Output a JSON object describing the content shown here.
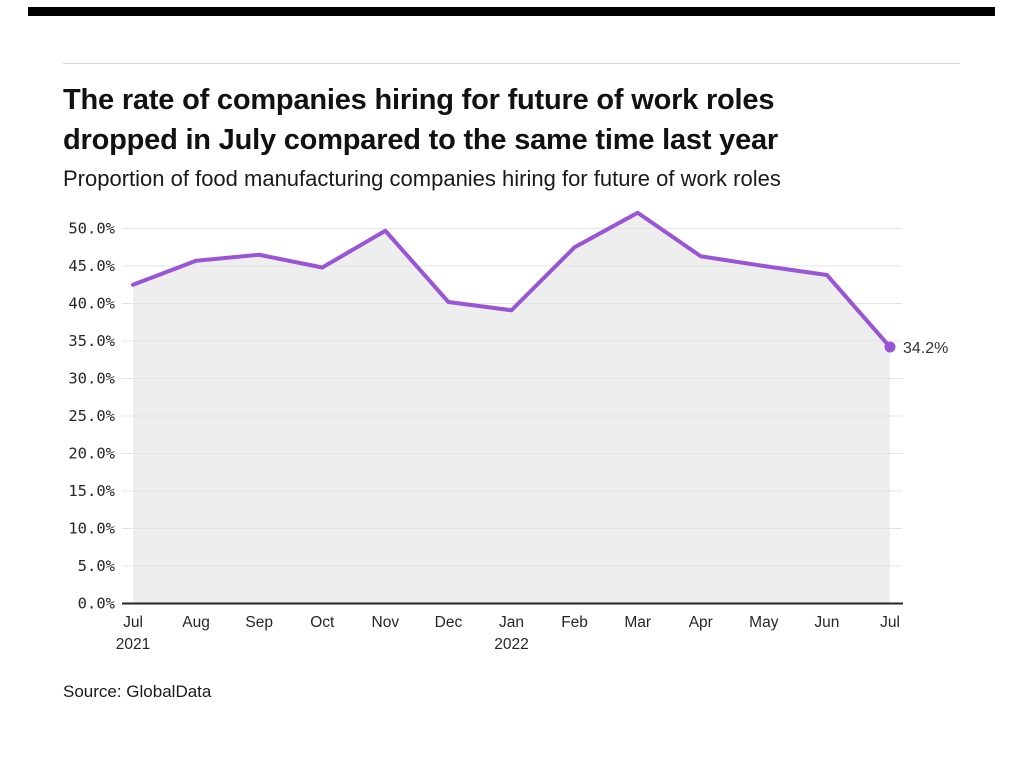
{
  "header": {
    "title_line1": "The rate of companies hiring for future of work roles",
    "title_line2": "dropped in July compared to the same time last year",
    "subtitle": "Proportion of food manufacturing companies hiring for future of work roles"
  },
  "footer": {
    "source": "Source: GlobalData"
  },
  "colors": {
    "accent_bar": "#000000",
    "header_rule": "#d9d9d9",
    "line": "#9a54d6",
    "area_fill": "#eeeeee",
    "gridline": "#e4e4e4",
    "axis": "#262626",
    "tick_text": "#262626",
    "end_label_text": "#333333"
  },
  "chart_data": {
    "type": "line",
    "title": "The rate of companies hiring for future of work roles dropped in July compared to the same time last year",
    "subtitle": "Proportion of food manufacturing companies hiring for future of work roles",
    "categories": [
      "Jul",
      "Aug",
      "Sep",
      "Oct",
      "Nov",
      "Dec",
      "Jan",
      "Feb",
      "Mar",
      "Apr",
      "May",
      "Jun",
      "Jul"
    ],
    "category_years": [
      {
        "index": 0,
        "year": "2021"
      },
      {
        "index": 6,
        "year": "2022"
      }
    ],
    "values": [
      42.5,
      45.7,
      46.5,
      44.8,
      49.7,
      40.2,
      39.1,
      47.5,
      52.1,
      46.3,
      45.0,
      43.8,
      34.2
    ],
    "end_label": "34.2%",
    "ytick_labels": [
      "0.0%",
      "5.0%",
      "10.0%",
      "15.0%",
      "20.0%",
      "25.0%",
      "30.0%",
      "35.0%",
      "40.0%",
      "45.0%",
      "50.0%"
    ],
    "ytick_step": 5,
    "ylim": [
      0,
      52.5
    ],
    "xlabel": "",
    "ylabel": "",
    "legend": "none",
    "grid": "horizontal",
    "area_under_line": true,
    "marker_on_last_point": true
  }
}
